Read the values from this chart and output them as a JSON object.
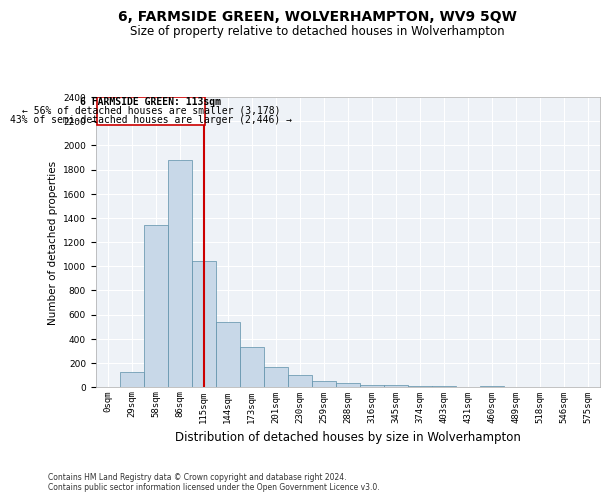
{
  "title": "6, FARMSIDE GREEN, WOLVERHAMPTON, WV9 5QW",
  "subtitle": "Size of property relative to detached houses in Wolverhampton",
  "xlabel": "Distribution of detached houses by size in Wolverhampton",
  "ylabel": "Number of detached properties",
  "footer_line1": "Contains HM Land Registry data © Crown copyright and database right 2024.",
  "footer_line2": "Contains public sector information licensed under the Open Government Licence v3.0.",
  "bar_labels": [
    "0sqm",
    "29sqm",
    "58sqm",
    "86sqm",
    "115sqm",
    "144sqm",
    "173sqm",
    "201sqm",
    "230sqm",
    "259sqm",
    "288sqm",
    "316sqm",
    "345sqm",
    "374sqm",
    "403sqm",
    "431sqm",
    "460sqm",
    "489sqm",
    "518sqm",
    "546sqm",
    "575sqm"
  ],
  "bar_values": [
    2,
    125,
    1340,
    1880,
    1040,
    540,
    335,
    165,
    100,
    50,
    30,
    20,
    15,
    8,
    5,
    0,
    5,
    0,
    0,
    0,
    0
  ],
  "bar_color": "#c8d8e8",
  "bar_edge_color": "#5b8fa8",
  "bar_width": 1.0,
  "ylim": [
    0,
    2400
  ],
  "yticks": [
    0,
    200,
    400,
    600,
    800,
    1000,
    1200,
    1400,
    1600,
    1800,
    2000,
    2200,
    2400
  ],
  "vline_x_index": 4,
  "vline_color": "#cc0000",
  "annotation_line1": "6 FARMSIDE GREEN: 113sqm",
  "annotation_line2": "← 56% of detached houses are smaller (3,178)",
  "annotation_line3": "43% of semi-detached houses are larger (2,446) →",
  "annotation_box_color": "#cc0000",
  "bg_color": "#eef2f7",
  "grid_color": "#ffffff",
  "title_fontsize": 10,
  "subtitle_fontsize": 8.5,
  "tick_label_fontsize": 6.5,
  "ylabel_fontsize": 7.5,
  "xlabel_fontsize": 8.5,
  "ann_fontsize": 7.0,
  "footer_fontsize": 5.5
}
